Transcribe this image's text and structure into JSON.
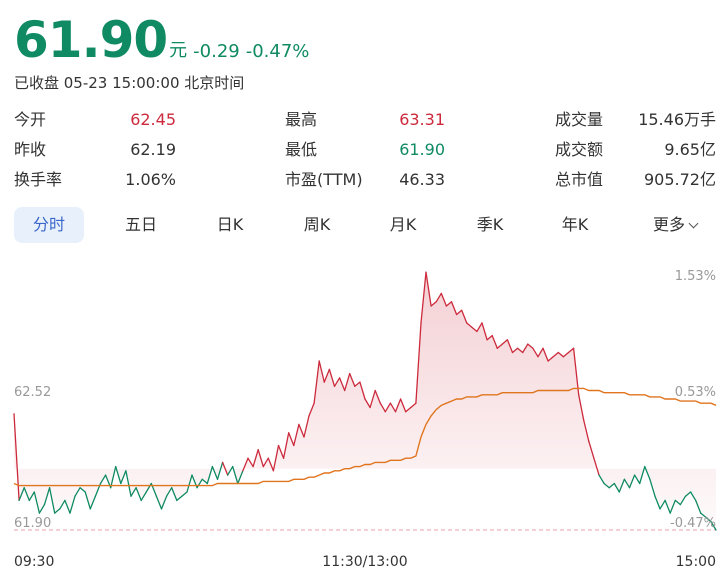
{
  "quote": {
    "price": "61.90",
    "unit": "元",
    "change": "-0.29",
    "change_pct": "-0.47%",
    "status": "已收盘 05-23 15:00:00 北京时间",
    "colors": {
      "up": "#cc2a3c",
      "down": "#0f8a63",
      "avg_line": "#e0751f",
      "accent": "#3b67c9"
    }
  },
  "stats": [
    {
      "label": "今开",
      "value": "62.45"
    },
    {
      "label": "最高",
      "value": "63.31"
    },
    {
      "label": "成交量",
      "value": "15.46万手"
    },
    {
      "label": "昨收",
      "value": "62.19"
    },
    {
      "label": "最低",
      "value": "61.90"
    },
    {
      "label": "成交额",
      "value": "9.65亿"
    },
    {
      "label": "换手率",
      "value": "1.06%"
    },
    {
      "label": "市盈(TTM)",
      "value": "46.33"
    },
    {
      "label": "总市值",
      "value": "905.72亿"
    }
  ],
  "tabs": [
    {
      "label": "分时",
      "active": true
    },
    {
      "label": "五日"
    },
    {
      "label": "日K"
    },
    {
      "label": "周K"
    },
    {
      "label": "月K"
    },
    {
      "label": "季K"
    },
    {
      "label": "年K"
    },
    {
      "label": "更多",
      "icon": "chevron-down-icon"
    }
  ],
  "chart_data": {
    "type": "line",
    "prev_close": 62.19,
    "ylim": [
      61.9,
      63.14
    ],
    "y_labels_left": [
      "62.52",
      "61.90"
    ],
    "y_labels_right": [
      "1.53%",
      "0.53%",
      "-0.47%"
    ],
    "x_labels": [
      "09:30",
      "11:30/13:00",
      "15:00"
    ],
    "price_series": [
      62.45,
      62.04,
      62.1,
      62.04,
      62.08,
      61.98,
      62.02,
      62.1,
      61.98,
      62.0,
      62.04,
      61.98,
      62.06,
      62.1,
      62.08,
      62.0,
      62.06,
      62.12,
      62.16,
      62.1,
      62.2,
      62.12,
      62.18,
      62.06,
      62.1,
      62.04,
      62.08,
      62.12,
      62.06,
      62.0,
      62.06,
      62.1,
      62.04,
      62.06,
      62.08,
      62.16,
      62.1,
      62.14,
      62.12,
      62.2,
      62.14,
      62.22,
      62.16,
      62.2,
      62.12,
      62.18,
      62.24,
      62.2,
      62.28,
      62.2,
      62.24,
      62.18,
      62.3,
      62.24,
      62.36,
      62.3,
      62.4,
      62.34,
      62.44,
      62.5,
      62.7,
      62.6,
      62.66,
      62.58,
      62.62,
      62.56,
      62.64,
      62.58,
      62.6,
      62.52,
      62.48,
      62.56,
      62.5,
      62.46,
      62.5,
      62.46,
      62.52,
      62.46,
      62.48,
      62.5,
      62.88,
      63.12,
      62.96,
      62.98,
      63.02,
      62.96,
      62.98,
      62.92,
      62.94,
      62.88,
      62.86,
      62.84,
      62.88,
      62.8,
      62.82,
      62.76,
      62.78,
      62.8,
      62.74,
      62.76,
      62.74,
      62.78,
      62.76,
      62.72,
      62.76,
      62.7,
      62.72,
      62.74,
      62.72,
      62.74,
      62.76,
      62.54,
      62.42,
      62.32,
      62.24,
      62.16,
      62.12,
      62.1,
      62.12,
      62.08,
      62.14,
      62.1,
      62.16,
      62.12,
      62.2,
      62.14,
      62.06,
      62.0,
      62.04,
      61.98,
      62.04,
      62.02,
      62.06,
      62.08,
      62.04,
      61.98,
      61.96,
      61.94,
      61.9
    ],
    "avg_series": [
      62.12,
      62.11,
      62.11,
      62.11,
      62.11,
      62.11,
      62.11,
      62.11,
      62.11,
      62.11,
      62.11,
      62.11,
      62.11,
      62.11,
      62.11,
      62.11,
      62.11,
      62.11,
      62.11,
      62.11,
      62.11,
      62.11,
      62.11,
      62.11,
      62.11,
      62.11,
      62.11,
      62.11,
      62.11,
      62.11,
      62.11,
      62.11,
      62.11,
      62.11,
      62.11,
      62.11,
      62.11,
      62.11,
      62.11,
      62.11,
      62.12,
      62.12,
      62.12,
      62.12,
      62.12,
      62.12,
      62.12,
      62.12,
      62.12,
      62.13,
      62.13,
      62.13,
      62.13,
      62.13,
      62.13,
      62.14,
      62.14,
      62.14,
      62.15,
      62.15,
      62.16,
      62.17,
      62.17,
      62.18,
      62.18,
      62.19,
      62.19,
      62.2,
      62.2,
      62.21,
      62.21,
      62.22,
      62.22,
      62.22,
      62.23,
      62.23,
      62.23,
      62.24,
      62.24,
      62.25,
      62.34,
      62.4,
      62.44,
      62.47,
      62.49,
      62.5,
      62.51,
      62.52,
      62.52,
      62.53,
      62.53,
      62.53,
      62.54,
      62.54,
      62.54,
      62.54,
      62.55,
      62.55,
      62.55,
      62.55,
      62.55,
      62.55,
      62.55,
      62.56,
      62.56,
      62.56,
      62.56,
      62.56,
      62.56,
      62.56,
      62.57,
      62.57,
      62.57,
      62.56,
      62.56,
      62.56,
      62.55,
      62.55,
      62.55,
      62.55,
      62.55,
      62.54,
      62.54,
      62.54,
      62.54,
      62.53,
      62.53,
      62.53,
      62.52,
      62.52,
      62.52,
      62.51,
      62.51,
      62.51,
      62.51,
      62.5,
      62.5,
      62.5,
      62.49
    ]
  }
}
